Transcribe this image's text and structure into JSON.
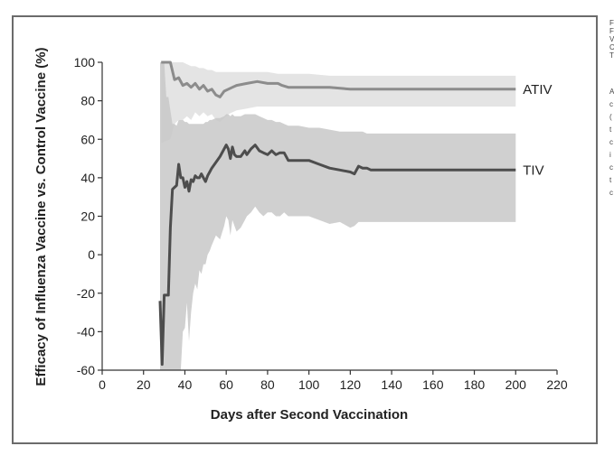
{
  "chart_data": {
    "type": "line",
    "title": "",
    "xlabel": "Days after Second Vaccination",
    "ylabel": "Efficacy of Influenza Vaccine vs. Control Vaccine (%)",
    "xlim": [
      0,
      220
    ],
    "ylim": [
      -60,
      100
    ],
    "x_ticks": [
      0,
      20,
      40,
      60,
      80,
      100,
      120,
      140,
      160,
      180,
      200,
      220
    ],
    "y_ticks": [
      -60,
      -40,
      -20,
      0,
      20,
      40,
      60,
      80,
      100
    ],
    "grid": false,
    "legend": "inline-right",
    "series": [
      {
        "name": "ATIV",
        "color": "#8c8c8c",
        "band_color": "#e3e3e3",
        "x": [
          28.5,
          33,
          35,
          37,
          39,
          41,
          43,
          45,
          47,
          49,
          51,
          53,
          55,
          57,
          59,
          61,
          63,
          65,
          70,
          75,
          80,
          85,
          87,
          90,
          100,
          110,
          120,
          125,
          130,
          140,
          150,
          160,
          170,
          180,
          190,
          200
        ],
        "y": [
          100,
          100,
          91,
          92,
          88,
          89,
          87,
          89,
          86,
          88,
          85,
          86,
          83,
          82,
          85,
          86,
          87,
          88,
          89,
          90,
          89,
          89,
          88,
          87,
          87,
          87,
          86,
          86,
          86,
          86,
          86,
          86,
          86,
          86,
          86,
          86
        ],
        "upper": [
          100,
          100,
          100,
          100,
          100,
          99,
          98,
          98,
          97,
          97,
          96,
          96,
          95,
          95,
          95,
          95,
          95,
          95,
          95,
          95,
          95,
          94,
          94,
          94,
          94,
          93,
          93,
          93,
          93,
          93,
          93,
          93,
          93,
          93,
          93,
          93
        ],
        "lower": [
          58,
          60,
          68,
          70,
          70,
          72,
          70,
          74,
          72,
          74,
          72,
          73,
          70,
          69,
          71,
          73,
          74,
          75,
          76,
          77,
          77,
          77,
          77,
          77,
          77,
          77,
          77,
          77,
          77,
          77,
          77,
          77,
          77,
          77,
          77,
          77
        ]
      },
      {
        "name": "TIV",
        "color": "#4d4d4d",
        "band_color": "#c8c8c8",
        "x": [
          28,
          29,
          30,
          31,
          32,
          33,
          34,
          35,
          36,
          37,
          38,
          39,
          40,
          41,
          42,
          43,
          44,
          45,
          46,
          47,
          48,
          49,
          50,
          51,
          52,
          53,
          55,
          57,
          59,
          60,
          61,
          62,
          63,
          64,
          65,
          67,
          69,
          70,
          72,
          74,
          76,
          78,
          80,
          82,
          84,
          86,
          88,
          90,
          95,
          100,
          105,
          110,
          115,
          120,
          122,
          124,
          126,
          128,
          130,
          133,
          140,
          150,
          160,
          170,
          180,
          190,
          200
        ],
        "y": [
          -24,
          -57,
          -21,
          -21,
          -21,
          14,
          34,
          35,
          36,
          47,
          40,
          40,
          35,
          38,
          33,
          39,
          38,
          41,
          40,
          40,
          42,
          40,
          38,
          41,
          43,
          45,
          48,
          51,
          55,
          57,
          55,
          50,
          56,
          52,
          51,
          51,
          54,
          52,
          55,
          57,
          54,
          53,
          52,
          54,
          52,
          53,
          53,
          49,
          49,
          49,
          47,
          45,
          44,
          43,
          42,
          46,
          45,
          45,
          44,
          44,
          44,
          44,
          44,
          44,
          44,
          44,
          44
        ],
        "upper": [
          100,
          100,
          100,
          82,
          82,
          75,
          68,
          68,
          67,
          70,
          70,
          70,
          69,
          69,
          68,
          68,
          68,
          68,
          68,
          68,
          68,
          68,
          69,
          69,
          70,
          70,
          71,
          71,
          72,
          73,
          73,
          72,
          73,
          72,
          72,
          72,
          73,
          73,
          73,
          73,
          72,
          71,
          70,
          70,
          69,
          69,
          68,
          67,
          67,
          66,
          66,
          65,
          64,
          64,
          64,
          64,
          64,
          63,
          63,
          63,
          63,
          63,
          63,
          63,
          63,
          63,
          63
        ],
        "lower": [
          -60,
          -60,
          -60,
          -60,
          -60,
          -60,
          -60,
          -60,
          -60,
          -60,
          -60,
          -40,
          -38,
          -25,
          -45,
          -30,
          -20,
          -15,
          -18,
          -8,
          -10,
          -5,
          -5,
          0,
          2,
          5,
          10,
          8,
          15,
          20,
          18,
          10,
          18,
          15,
          12,
          14,
          18,
          20,
          22,
          25,
          22,
          20,
          22,
          22,
          20,
          20,
          22,
          20,
          20,
          20,
          18,
          16,
          17,
          14,
          15,
          17,
          17,
          17,
          17,
          17,
          17,
          17,
          17,
          17,
          17,
          17,
          17
        ]
      }
    ]
  },
  "side_text": [
    "F",
    "F",
    "V",
    "C",
    "T",
    "",
    "A",
    "c",
    "(",
    "t",
    "c",
    "i",
    "c",
    "t",
    "c"
  ]
}
